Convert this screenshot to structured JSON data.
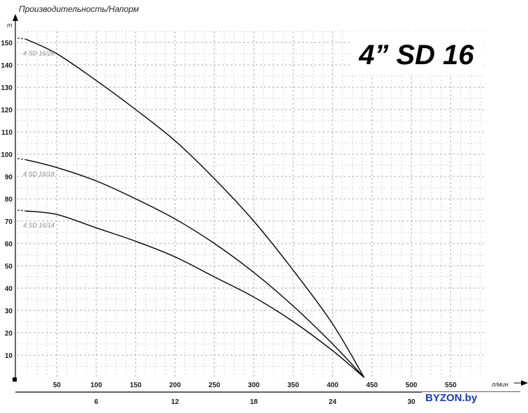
{
  "chart_data": {
    "type": "line",
    "title": "4” SD 16",
    "ylabel": "Производительность/Напорм",
    "yunit": "m",
    "xunit": "л/мин",
    "xlim": [
      0,
      600
    ],
    "ylim": [
      0,
      155
    ],
    "x_ticks": [
      50,
      100,
      150,
      200,
      250,
      300,
      350,
      400,
      450,
      500,
      550
    ],
    "y_ticks": [
      10,
      20,
      30,
      40,
      50,
      60,
      70,
      80,
      90,
      100,
      110,
      120,
      130,
      140,
      150
    ],
    "secondary_x_ticks": [
      {
        "label": "6",
        "x": 100
      },
      {
        "label": "12",
        "x": 200
      },
      {
        "label": "18",
        "x": 300
      },
      {
        "label": "24",
        "x": 400
      },
      {
        "label": "30",
        "x": 500
      }
    ],
    "grid": true,
    "series": [
      {
        "name": "4 SD 16/28",
        "x": [
          0,
          50,
          100,
          150,
          200,
          250,
          300,
          350,
          400,
          440
        ],
        "y": [
          152,
          145,
          133,
          120,
          106,
          89,
          70,
          48,
          24,
          0
        ]
      },
      {
        "name": "4 SD 16/18",
        "x": [
          0,
          50,
          100,
          150,
          200,
          250,
          300,
          350,
          400,
          440
        ],
        "y": [
          98,
          94,
          88,
          80,
          71,
          60,
          47,
          32,
          15,
          0
        ]
      },
      {
        "name": "4 SD 16/14",
        "x": [
          0,
          50,
          100,
          150,
          200,
          250,
          300,
          350,
          400,
          440
        ],
        "y": [
          75,
          73,
          67,
          61,
          54,
          45,
          36,
          25,
          12,
          0
        ]
      }
    ]
  },
  "watermark": {
    "brand": "BYZON.by"
  }
}
